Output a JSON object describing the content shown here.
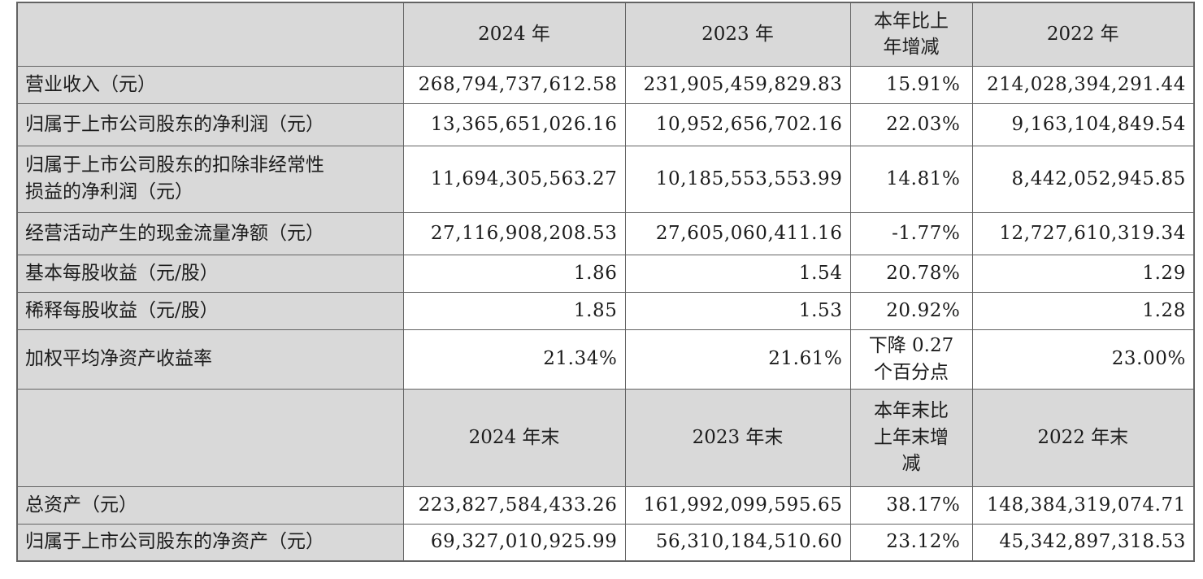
{
  "colors": {
    "header_bg": "#d9d9d9",
    "label_bg": "#d9d9d9",
    "data_cell_bg": "#ffffff",
    "border": "#636363",
    "text": "#1c1c1c"
  },
  "table": {
    "period_header": {
      "col_2024": "2024 年",
      "col_2023": "2023 年",
      "col_change": "本年比上\n年增减",
      "col_2022": "2022 年"
    },
    "endpoint_header": {
      "col_2024": "2024 年末",
      "col_2023": "2023 年末",
      "col_change": "本年末比\n上年末增\n减",
      "col_2022": "2022 年末"
    },
    "period_rows": [
      {
        "label": "营业收入（元）",
        "y2024": "268,794,737,612.58",
        "y2023": "231,905,459,829.83",
        "change": "15.91%",
        "y2022": "214,028,394,291.44"
      },
      {
        "label": "归属于上市公司股东的净利润（元）",
        "y2024": "13,365,651,026.16",
        "y2023": "10,952,656,702.16",
        "change": "22.03%",
        "y2022": "9,163,104,849.54"
      },
      {
        "label": "归属于上市公司股东的扣除非经常性\n损益的净利润（元）",
        "y2024": "11,694,305,563.27",
        "y2023": "10,185,553,553.99",
        "change": "14.81%",
        "y2022": "8,442,052,945.85"
      },
      {
        "label": "经营活动产生的现金流量净额（元）",
        "y2024": "27,116,908,208.53",
        "y2023": "27,605,060,411.16",
        "change": "-1.77%",
        "y2022": "12,727,610,319.34"
      },
      {
        "label": "基本每股收益（元/股）",
        "y2024": "1.86",
        "y2023": "1.54",
        "change": "20.78%",
        "y2022": "1.29"
      },
      {
        "label": "稀释每股收益（元/股）",
        "y2024": "1.85",
        "y2023": "1.53",
        "change": "20.92%",
        "y2022": "1.28"
      },
      {
        "label": "加权平均净资产收益率",
        "y2024": "21.34%",
        "y2023": "21.61%",
        "change": "下降 0.27\n个百分点",
        "y2022": "23.00%"
      }
    ],
    "endpoint_rows": [
      {
        "label": "总资产（元）",
        "y2024": "223,827,584,433.26",
        "y2023": "161,992,099,595.65",
        "change": "38.17%",
        "y2022": "148,384,319,074.71"
      },
      {
        "label": "归属于上市公司股东的净资产（元）",
        "y2024": "69,327,010,925.99",
        "y2023": "56,310,184,510.60",
        "change": "23.12%",
        "y2022": "45,342,897,318.53"
      }
    ]
  }
}
